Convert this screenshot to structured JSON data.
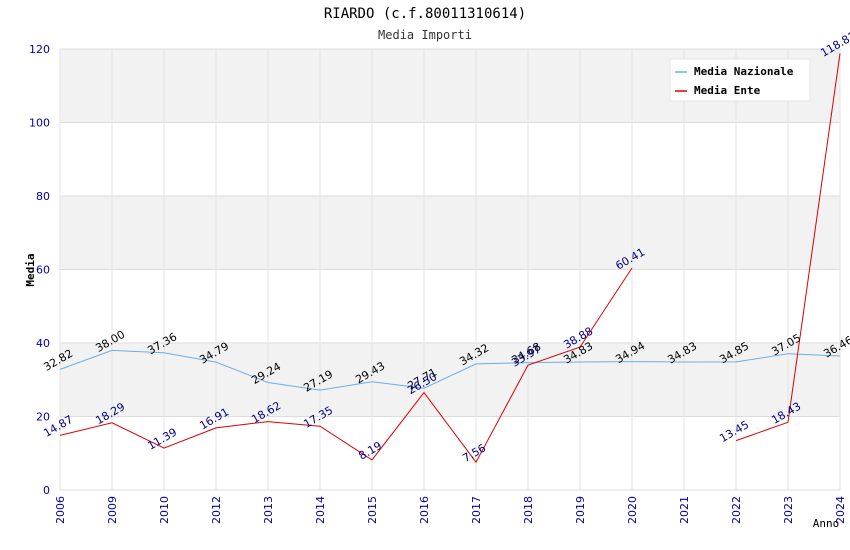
{
  "chart_data": {
    "type": "line",
    "title": "RIARDO (c.f.80011310614)",
    "subtitle": "Media Importi",
    "xlabel": "Anno",
    "ylabel": "Media",
    "ylim": [
      0,
      120
    ],
    "yticks": [
      0,
      20,
      40,
      60,
      80,
      100,
      120
    ],
    "grid": true,
    "legend_position": "top-right",
    "categories": [
      "2006",
      "2009",
      "2010",
      "2012",
      "2013",
      "2014",
      "2015",
      "2016",
      "2017",
      "2018",
      "2019",
      "2020",
      "2021",
      "2022",
      "2023",
      "2024"
    ],
    "series": [
      {
        "name": "Media Nazionale",
        "color": "#6aaee8",
        "label_color": "#000000",
        "values": [
          32.82,
          38.0,
          37.36,
          34.79,
          29.24,
          27.19,
          29.43,
          27.71,
          34.32,
          34.68,
          34.83,
          34.94,
          34.83,
          34.85,
          37.05,
          36.46
        ],
        "labels": [
          "32.82",
          "38.00",
          "37.36",
          "34.79",
          "29.24",
          "27.19",
          "29.43",
          "27.71",
          "34.32",
          "34.68",
          "34.83",
          "34.94",
          "34.83",
          "34.85",
          "37.05",
          "36.46"
        ]
      },
      {
        "name": "Media Ente",
        "color": "#dd0000",
        "label_color": "#000080",
        "values": [
          14.87,
          18.29,
          11.39,
          16.91,
          18.62,
          17.35,
          8.19,
          26.5,
          7.56,
          33.97,
          38.88,
          60.41,
          null,
          13.45,
          18.43,
          118.81
        ],
        "labels": [
          "14.87",
          "18.29",
          "11.39",
          "16.91",
          "18.62",
          "17.35",
          "8.19",
          "26.50",
          "7.56",
          "33.97",
          "38.88",
          "60.41",
          "",
          "13.45",
          "18.43",
          "118.81"
        ]
      }
    ]
  }
}
